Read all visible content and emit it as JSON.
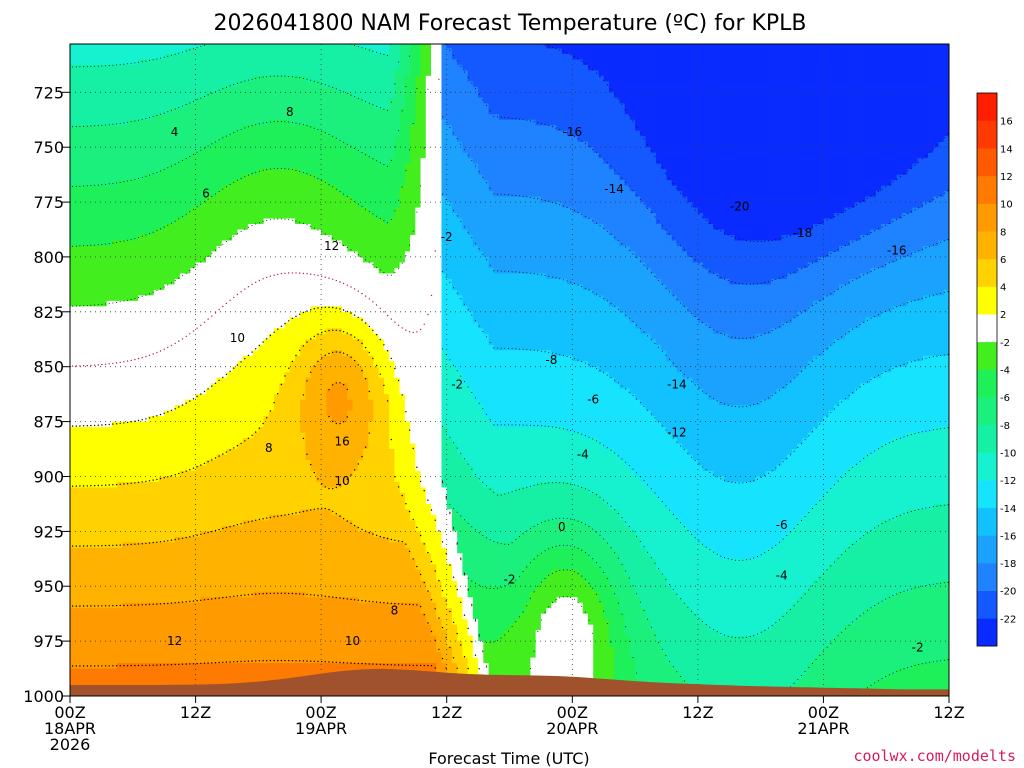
{
  "chart_data": {
    "type": "heatmap",
    "title": "2026041800 NAM Forecast Temperature (ºC) for KPLB",
    "xlabel": "Forecast Time (UTC)",
    "ylabel": "",
    "credit": "coolwx.com/modelts",
    "y_axis": {
      "ticks": [
        725,
        750,
        775,
        800,
        825,
        850,
        875,
        900,
        925,
        950,
        975,
        1000
      ],
      "range": [
        1000,
        703
      ],
      "units": "hPa"
    },
    "x_axis": {
      "range_hours": [
        0,
        84
      ],
      "ticks": [
        {
          "hour": 0,
          "lines": [
            "00Z",
            "18APR",
            "2026"
          ]
        },
        {
          "hour": 12,
          "lines": [
            "12Z"
          ]
        },
        {
          "hour": 24,
          "lines": [
            "00Z",
            "19APR"
          ]
        },
        {
          "hour": 36,
          "lines": [
            "12Z"
          ]
        },
        {
          "hour": 48,
          "lines": [
            "00Z",
            "20APR"
          ]
        },
        {
          "hour": 60,
          "lines": [
            "12Z"
          ]
        },
        {
          "hour": 72,
          "lines": [
            "00Z",
            "21APR"
          ]
        },
        {
          "hour": 84,
          "lines": [
            "12Z"
          ]
        }
      ]
    },
    "grid": true,
    "colorbar": {
      "levels": [
        -22,
        -20,
        -18,
        -16,
        -14,
        -12,
        -10,
        -8,
        -6,
        -4,
        -2,
        2,
        4,
        6,
        8,
        10,
        12,
        14,
        16
      ],
      "colors": [
        "#0a2bff",
        "#1459ff",
        "#1f82ff",
        "#1ba2ff",
        "#12c2ff",
        "#16e4ff",
        "#16f2d0",
        "#16f0a4",
        "#1cf07c",
        "#1ef05a",
        "#42ee1e",
        "#ffffff",
        "#ffff00",
        "#ffd200",
        "#ffb300",
        "#ff9a00",
        "#ff7a00",
        "#ff5a00",
        "#ff3a00",
        "#ff1f00"
      ]
    },
    "contour_labels": [
      {
        "hour": 10,
        "p": 743,
        "text": "4"
      },
      {
        "hour": 13,
        "p": 771,
        "text": "6"
      },
      {
        "hour": 21,
        "p": 734,
        "text": "8"
      },
      {
        "hour": 25,
        "p": 795,
        "text": "12"
      },
      {
        "hour": 16,
        "p": 837,
        "text": "10"
      },
      {
        "hour": 26,
        "p": 884,
        "text": "16"
      },
      {
        "hour": 19,
        "p": 887,
        "text": "8"
      },
      {
        "hour": 26,
        "p": 902,
        "text": "10"
      },
      {
        "hour": 31,
        "p": 961,
        "text": "8"
      },
      {
        "hour": 27,
        "p": 975,
        "text": "10"
      },
      {
        "hour": 10,
        "p": 975,
        "text": "12"
      },
      {
        "hour": 36,
        "p": 791,
        "text": "-2"
      },
      {
        "hour": 37,
        "p": 858,
        "text": "-2"
      },
      {
        "hour": 42,
        "p": 947,
        "text": "-2"
      },
      {
        "hour": 46,
        "p": 847,
        "text": "-8"
      },
      {
        "hour": 47,
        "p": 923,
        "text": "0"
      },
      {
        "hour": 48,
        "p": 743,
        "text": "-16"
      },
      {
        "hour": 52,
        "p": 769,
        "text": "-14"
      },
      {
        "hour": 64,
        "p": 777,
        "text": "-20"
      },
      {
        "hour": 70,
        "p": 789,
        "text": "-18"
      },
      {
        "hour": 79,
        "p": 797,
        "text": "-16"
      },
      {
        "hour": 50,
        "p": 865,
        "text": "-6"
      },
      {
        "hour": 49,
        "p": 890,
        "text": "-4"
      },
      {
        "hour": 58,
        "p": 858,
        "text": "-14"
      },
      {
        "hour": 58,
        "p": 880,
        "text": "-12"
      },
      {
        "hour": 68,
        "p": 922,
        "text": "-6"
      },
      {
        "hour": 68,
        "p": 945,
        "text": "-4"
      },
      {
        "hour": 81,
        "p": 978,
        "text": "-2"
      }
    ],
    "terrain_color": "#a0522d",
    "freezing_line_color": "#c2185b"
  }
}
